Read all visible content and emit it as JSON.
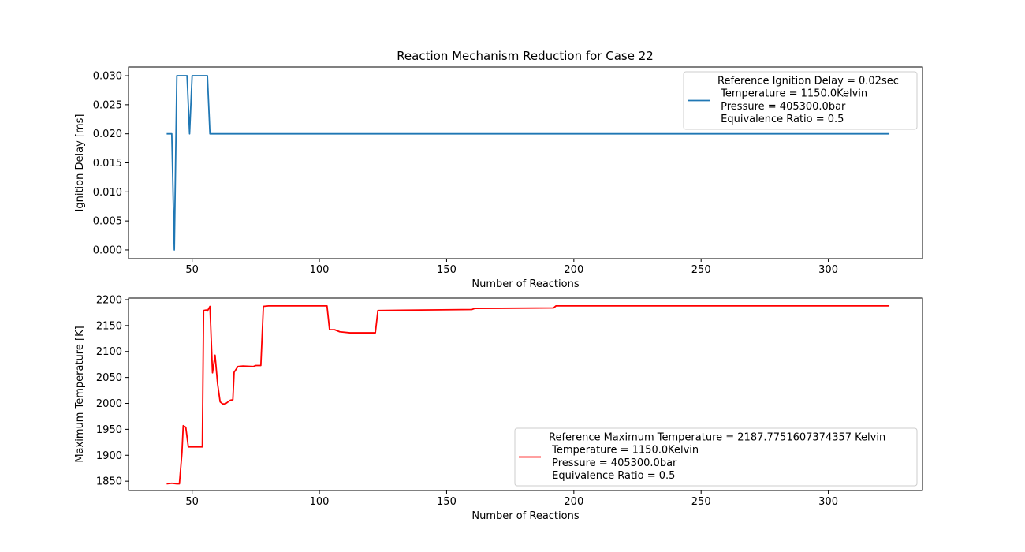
{
  "figure": {
    "title": "Reaction Mechanism Reduction for Case 22"
  },
  "chart_data": [
    {
      "type": "line",
      "title": "Reaction Mechanism Reduction for Case 22",
      "xlabel": "Number of Reactions",
      "ylabel": "Ignition Delay [ms]",
      "xlim": [
        25,
        337
      ],
      "ylim": [
        -0.0015,
        0.0315
      ],
      "xticks": [
        "50",
        "100",
        "150",
        "200",
        "250",
        "300"
      ],
      "yticks": [
        "0.000",
        "0.005",
        "0.010",
        "0.015",
        "0.020",
        "0.025",
        "0.030"
      ],
      "grid": false,
      "legend_position": "upper right",
      "legend_lines": [
        "Reference Ignition Delay = 0.02sec",
        " Temperature = 1150.0Kelvin",
        " Pressure = 405300.0bar",
        " Equivalence Ratio = 0.5"
      ],
      "series": [
        {
          "color": "#1f77b4",
          "points": [
            [
              40,
              0.02
            ],
            [
              42,
              0.02
            ],
            [
              43,
              0.0
            ],
            [
              44,
              0.03
            ],
            [
              48,
              0.03
            ],
            [
              49,
              0.02
            ],
            [
              50,
              0.03
            ],
            [
              56,
              0.03
            ],
            [
              57,
              0.02
            ],
            [
              324,
              0.02
            ]
          ]
        }
      ]
    },
    {
      "type": "line",
      "xlabel": "Number of Reactions",
      "ylabel": "Maximum Temperature [K]",
      "xlim": [
        25,
        337
      ],
      "ylim": [
        1832,
        2203
      ],
      "xticks": [
        "50",
        "100",
        "150",
        "200",
        "250",
        "300"
      ],
      "yticks": [
        "1850",
        "1900",
        "1950",
        "2000",
        "2050",
        "2100",
        "2150",
        "2200"
      ],
      "grid": false,
      "legend_position": "lower right",
      "legend_lines": [
        "Reference Maximum Temperature = 2187.7751607374357 Kelvin",
        " Temperature = 1150.0Kelvin",
        " Pressure = 405300.0bar",
        " Equivalence Ratio = 0.5"
      ],
      "series": [
        {
          "color": "#ff0000",
          "points": [
            [
              40,
              1845
            ],
            [
              42,
              1846
            ],
            [
              44,
              1845
            ],
            [
              45,
              1845
            ],
            [
              46,
              1905
            ],
            [
              46.5,
              1957
            ],
            [
              47.5,
              1954
            ],
            [
              48.5,
              1916
            ],
            [
              54,
              1916
            ],
            [
              54.5,
              2179
            ],
            [
              55.5,
              2180
            ],
            [
              56,
              2178
            ],
            [
              57,
              2187
            ],
            [
              58,
              2059
            ],
            [
              59,
              2093
            ],
            [
              60,
              2038
            ],
            [
              61,
              2003
            ],
            [
              62,
              1999
            ],
            [
              63,
              1999
            ],
            [
              65,
              2006
            ],
            [
              66,
              2007
            ],
            [
              66.5,
              2060
            ],
            [
              68,
              2071
            ],
            [
              70,
              2072
            ],
            [
              74,
              2071
            ],
            [
              75,
              2073
            ],
            [
              77,
              2073
            ],
            [
              78,
              2187
            ],
            [
              80,
              2188
            ],
            [
              103,
              2188
            ],
            [
              104,
              2142
            ],
            [
              106,
              2142
            ],
            [
              108,
              2138
            ],
            [
              112,
              2136
            ],
            [
              122,
              2136
            ],
            [
              123,
              2179
            ],
            [
              140,
              2180
            ],
            [
              160,
              2181
            ],
            [
              161,
              2183
            ],
            [
              192,
              2184
            ],
            [
              193,
              2188
            ],
            [
              324,
              2188
            ]
          ]
        }
      ]
    }
  ]
}
